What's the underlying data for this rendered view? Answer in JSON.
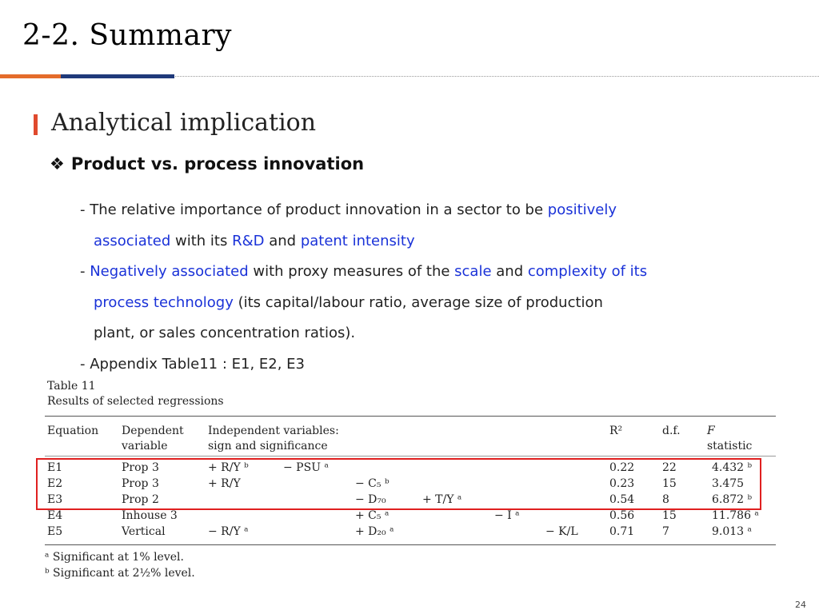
{
  "slide": {
    "title": "2-2. Summary",
    "page_number": "24",
    "accent_colors": {
      "orange": "#e46c2b",
      "navy": "#1f3a7a",
      "highlight": "#1a32d8",
      "box": "#e02020"
    }
  },
  "section": {
    "title": "Analytical implication"
  },
  "bullet": {
    "icon": "diamond-bullet-icon",
    "glyph": "❖",
    "label": "Product vs. process innovation"
  },
  "body": {
    "p1": {
      "a": "- The relative importance of product innovation in a sector to be ",
      "b": "positively",
      "c": "associated",
      "d": " with its ",
      "e": "R&D",
      "f": " and ",
      "g": "patent intensity"
    },
    "p2": {
      "a": "- ",
      "b": "Negatively associated",
      "c": " with proxy measures of the ",
      "d": "scale",
      "e": " and ",
      "f": "complexity of its",
      "g": "process technology",
      "h": " (its capital/labour ratio, average size of production",
      "i": "plant, or sales concentration ratios)."
    },
    "p3": "- Appendix Table11 : E1, E2, E3"
  },
  "table": {
    "caption": "Table 11",
    "subcaption": "Results of selected regressions",
    "headers": {
      "equation": "Equation",
      "dependent_1": "Dependent",
      "dependent_2": "variable",
      "independent_1": "Independent variables:",
      "independent_2": "sign and significance",
      "r2": "R²",
      "df": "d.f.",
      "f_1": "F",
      "f_2": "statistic"
    },
    "rows": [
      {
        "eq": "E1",
        "dep": "Prop 3",
        "v1": "+ R/Y ᵇ",
        "v2": "− PSU ᵃ",
        "v3": "",
        "v4": "",
        "v5": "",
        "v6": "",
        "r2": "0.22",
        "df": "22",
        "f": "4.432 ᵇ"
      },
      {
        "eq": "E2",
        "dep": "Prop 3",
        "v1": "+ R/Y",
        "v2": "",
        "v3": "− C₅ ᵇ",
        "v4": "",
        "v5": "",
        "v6": "",
        "r2": "0.23",
        "df": "15",
        "f": "3.475"
      },
      {
        "eq": "E3",
        "dep": "Prop 2",
        "v1": "",
        "v2": "",
        "v3": "− D₇₀",
        "v4": "+ T/Y ᵃ",
        "v5": "",
        "v6": "",
        "r2": "0.54",
        "df": "8",
        "f": "6.872 ᵇ"
      },
      {
        "eq": "E4",
        "dep": "Inhouse 3",
        "v1": "",
        "v2": "",
        "v3": "+ C₅ ᵃ",
        "v4": "",
        "v5": "− I ᵃ",
        "v6": "",
        "r2": "0.56",
        "df": "15",
        "f": "11.786 ᵃ"
      },
      {
        "eq": "E5",
        "dep": "Vertical",
        "v1": "− R/Y ᵃ",
        "v2": "",
        "v3": "+ D₂₀ ᵃ",
        "v4": "",
        "v5": "",
        "v6": "− K/L",
        "r2": "0.71",
        "df": "7",
        "f": "9.013 ᵃ"
      }
    ],
    "footnotes": [
      "ᵃ  Significant at 1% level.",
      "ᵇ  Significant  at 2½% level."
    ]
  }
}
